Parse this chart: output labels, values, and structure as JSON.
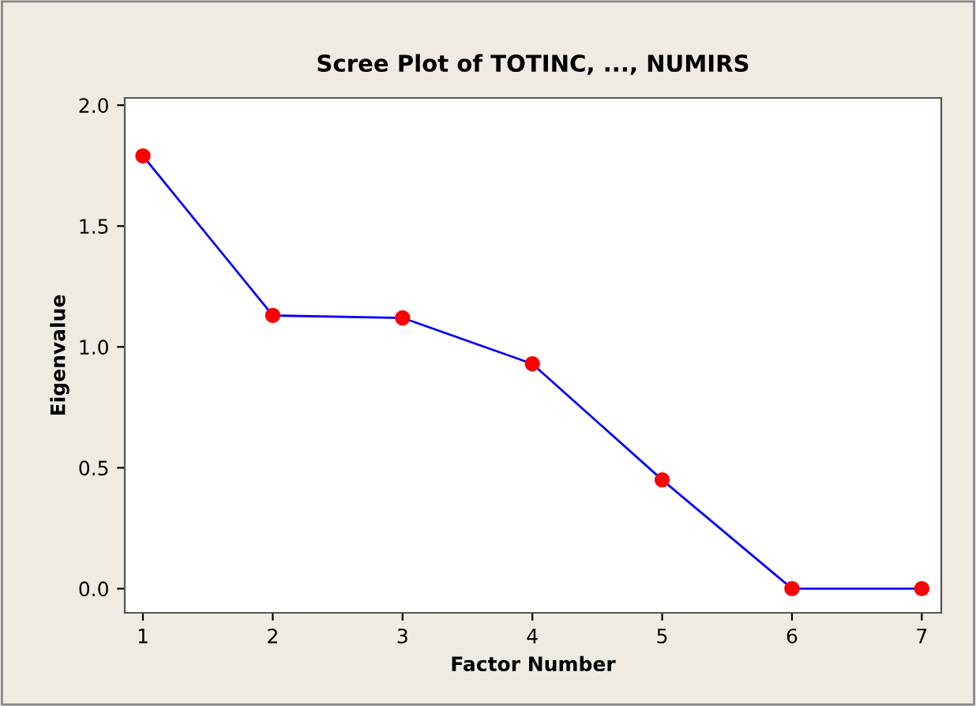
{
  "chart_data": {
    "type": "line",
    "title": "Scree Plot of TOTINC, ..., NUMIRS",
    "xlabel": "Factor Number",
    "ylabel": "Eigenvalue",
    "x": [
      1,
      2,
      3,
      4,
      5,
      6,
      7
    ],
    "series": [
      {
        "color": "#0000ff",
        "colors": [
          "#ff0000",
          "#ff0000",
          "#ff0000",
          "#ff0000",
          "#ff0000",
          "#ff0000",
          "#ff0000"
        ],
        "values": [
          1.79,
          1.13,
          1.12,
          0.93,
          0.45,
          0.0,
          0.0
        ]
      }
    ],
    "marker": "circle",
    "line_style": "solid",
    "xlim": [
      0.86,
      7.15
    ],
    "xticks": [
      1,
      2,
      3,
      4,
      5,
      6,
      7
    ],
    "ylim": [
      -0.1,
      2.03
    ],
    "yticks": [
      {
        "value": 0,
        "label": "0.0"
      },
      {
        "value": 0.5,
        "label": "0.5"
      },
      {
        "value": 1,
        "label": "1.0"
      },
      {
        "value": 1.5,
        "label": "1.5"
      },
      {
        "value": 2,
        "label": "2.0"
      }
    ],
    "grid": false,
    "legend": false
  }
}
